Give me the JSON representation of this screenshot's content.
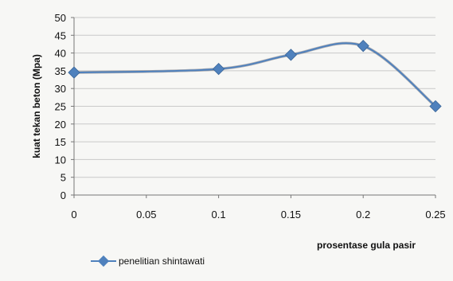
{
  "chart_data": {
    "type": "line",
    "x": [
      0,
      0.05,
      0.1,
      0.15,
      0.2,
      0.25
    ],
    "x_tick_labels": [
      "0",
      "0.05",
      "0.1",
      "0.15",
      "0.2",
      "0.25"
    ],
    "y_tick_labels": [
      "0",
      "5",
      "10",
      "15",
      "20",
      "25",
      "30",
      "35",
      "40",
      "45",
      "50"
    ],
    "xlabel": "prosentase gula pasir",
    "ylabel": "kuat tekan beton (Mpa)",
    "xlim": [
      0,
      0.25
    ],
    "ylim": [
      0,
      50
    ],
    "grid": true,
    "smooth": true,
    "legend_position": "bottom-left",
    "series": [
      {
        "name": "penelitian shintawati",
        "color": "#4f81bd",
        "points": [
          {
            "x": 0,
            "y": 34.5
          },
          {
            "x": 0.1,
            "y": 35.5
          },
          {
            "x": 0.15,
            "y": 39.5
          },
          {
            "x": 0.2,
            "y": 42
          },
          {
            "x": 0.25,
            "y": 25
          }
        ]
      }
    ]
  }
}
